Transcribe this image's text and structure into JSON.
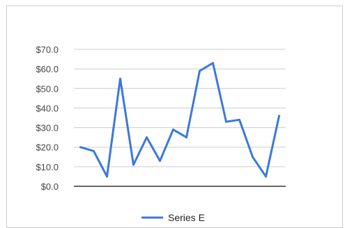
{
  "chart_data": {
    "type": "line",
    "title": "",
    "xlabel": "",
    "ylabel": "",
    "ylim": [
      0,
      70
    ],
    "y_ticks": [
      "$0.0",
      "$10.0",
      "$20.0",
      "$30.0",
      "$40.0",
      "$50.0",
      "$60.0",
      "$70.0"
    ],
    "y_tick_values": [
      0,
      10,
      20,
      30,
      40,
      50,
      60,
      70
    ],
    "grid": true,
    "legend": "bottom",
    "x": [
      1,
      2,
      3,
      4,
      5,
      6,
      7,
      8,
      9,
      10,
      11,
      12,
      13,
      14,
      15,
      16
    ],
    "series": [
      {
        "name": "Series E",
        "color": "#3c78d8",
        "values": [
          20,
          18,
          5,
          55,
          11,
          25,
          13,
          29,
          25,
          59,
          63,
          33,
          34,
          15,
          5,
          36
        ]
      }
    ]
  }
}
